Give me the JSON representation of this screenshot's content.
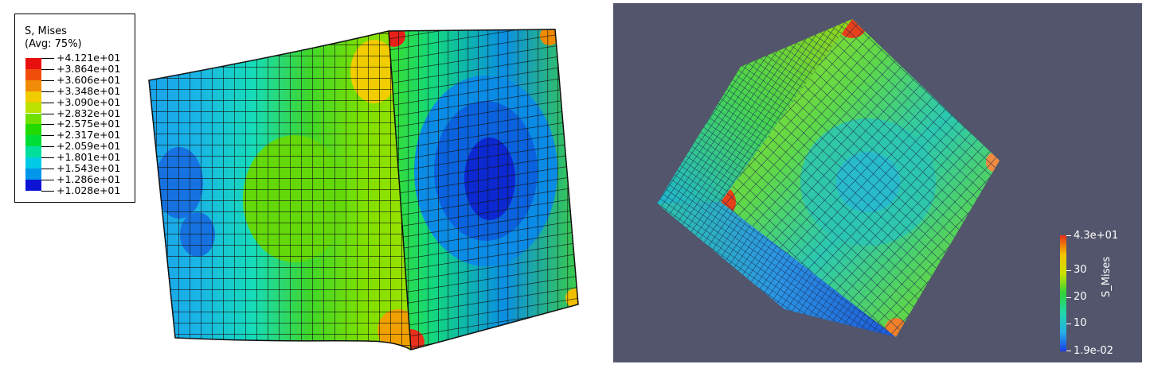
{
  "abaqus_legend": {
    "title": "S, Mises",
    "subtitle": "(Avg: 75%)",
    "levels": [
      {
        "label": "+4.121e+01",
        "color": "#e8100f"
      },
      {
        "label": "+3.864e+01",
        "color": "#f14d0a"
      },
      {
        "label": "+3.606e+01",
        "color": "#f18c08"
      },
      {
        "label": "+3.348e+01",
        "color": "#f0cc00"
      },
      {
        "label": "+3.090e+01",
        "color": "#b9e200"
      },
      {
        "label": "+2.832e+01",
        "color": "#6fe000"
      },
      {
        "label": "+2.575e+01",
        "color": "#22d900"
      },
      {
        "label": "+2.317e+01",
        "color": "#00dd37"
      },
      {
        "label": "+2.059e+01",
        "color": "#00e09c"
      },
      {
        "label": "+1.801e+01",
        "color": "#00cbe6"
      },
      {
        "label": "+1.543e+01",
        "color": "#0096e9"
      },
      {
        "label": "+1.286e+01",
        "color": "#0056e5"
      },
      {
        "label": "+1.028e+01",
        "color": "#0d13d4"
      }
    ]
  },
  "paraview_colorbar": {
    "title": "S_Mises",
    "max_label": "4.3e+01",
    "min_label": "1.9e-02",
    "tick_labels": [
      "30",
      "20",
      "10"
    ],
    "range": [
      0.019,
      43
    ],
    "tick_values": [
      30,
      20,
      10
    ],
    "colors": [
      "#e8301a",
      "#f3c400",
      "#c8e400",
      "#30d23b",
      "#1fd6a8",
      "#25b2e6",
      "#1a3de6"
    ]
  },
  "colors": {
    "viewport_bg": "#52556c",
    "mesh_line": "#111111"
  }
}
